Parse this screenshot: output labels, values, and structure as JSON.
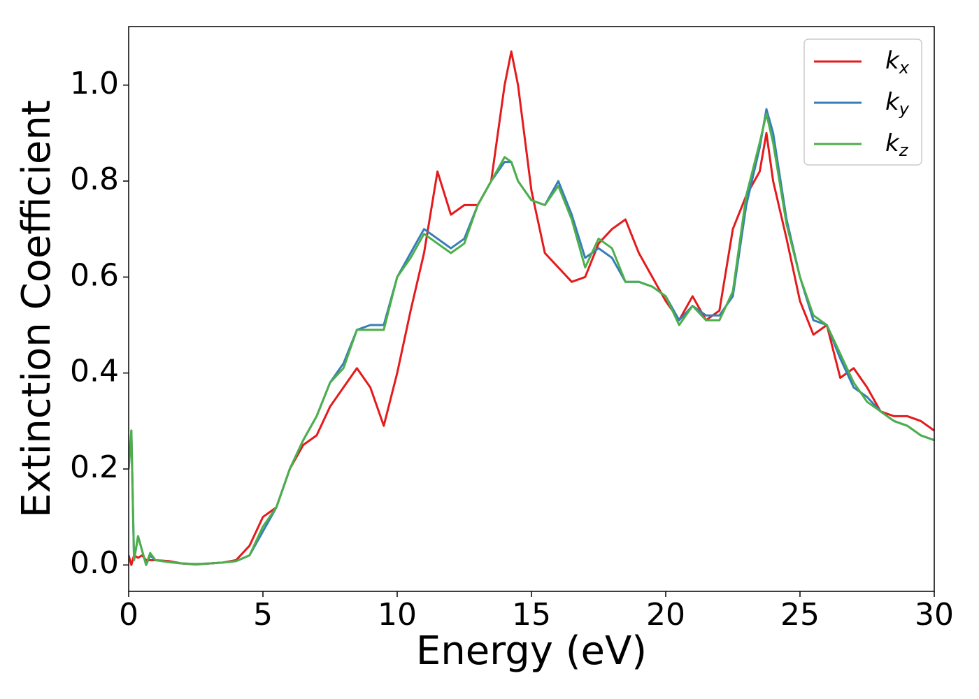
{
  "chart_data": {
    "type": "line",
    "xlabel": "Energy (eV)",
    "ylabel": "Extinction Coefficient",
    "x": [
      0,
      0.1,
      0.2,
      0.35,
      0.5,
      0.65,
      0.8,
      1,
      1.5,
      2,
      2.5,
      3,
      3.5,
      4,
      4.5,
      5,
      5.5,
      6,
      6.5,
      7,
      7.5,
      8,
      8.5,
      9,
      9.5,
      10,
      10.5,
      11,
      11.5,
      12,
      12.5,
      13,
      13.5,
      14,
      14.25,
      14.5,
      15,
      15.5,
      16,
      16.5,
      17,
      17.5,
      18,
      18.5,
      19,
      19.5,
      20,
      20.5,
      21,
      21.5,
      22,
      22.5,
      23,
      23.5,
      23.75,
      24,
      24.5,
      25,
      25.5,
      26,
      26.5,
      27,
      27.5,
      28,
      28.5,
      29,
      29.5,
      30
    ],
    "series": [
      {
        "name": "kx",
        "color": "#e41a1c",
        "values": [
          0.02,
          0.0,
          0.02,
          0.015,
          0.02,
          0.01,
          0.01,
          0.01,
          0.008,
          0.003,
          0.001,
          0.003,
          0.005,
          0.01,
          0.04,
          0.1,
          0.12,
          0.2,
          0.25,
          0.27,
          0.33,
          0.37,
          0.41,
          0.37,
          0.29,
          0.4,
          0.53,
          0.65,
          0.82,
          0.73,
          0.75,
          0.75,
          0.8,
          1.0,
          1.07,
          1.0,
          0.78,
          0.65,
          0.62,
          0.59,
          0.6,
          0.67,
          0.7,
          0.72,
          0.65,
          0.6,
          0.55,
          0.51,
          0.56,
          0.51,
          0.53,
          0.7,
          0.77,
          0.82,
          0.9,
          0.8,
          0.68,
          0.55,
          0.48,
          0.5,
          0.39,
          0.41,
          0.37,
          0.32,
          0.31,
          0.31,
          0.3,
          0.28
        ]
      },
      {
        "name": "ky",
        "color": "#377eb8",
        "values": [
          0.2,
          0.28,
          0.01,
          0.06,
          0.03,
          0.0,
          0.02,
          0.01,
          0.006,
          0.003,
          0.002,
          0.003,
          0.005,
          0.008,
          0.02,
          0.07,
          0.12,
          0.2,
          0.26,
          0.31,
          0.38,
          0.42,
          0.49,
          0.5,
          0.5,
          0.6,
          0.65,
          0.7,
          0.68,
          0.66,
          0.68,
          0.75,
          0.8,
          0.84,
          0.84,
          0.8,
          0.76,
          0.75,
          0.8,
          0.73,
          0.64,
          0.66,
          0.64,
          0.59,
          0.59,
          0.58,
          0.56,
          0.51,
          0.54,
          0.52,
          0.52,
          0.56,
          0.75,
          0.87,
          0.95,
          0.9,
          0.72,
          0.6,
          0.51,
          0.5,
          0.43,
          0.37,
          0.35,
          0.32,
          0.3,
          0.29,
          0.27,
          0.26
        ]
      },
      {
        "name": "kz",
        "color": "#4daf4a",
        "values": [
          0.2,
          0.28,
          0.01,
          0.06,
          0.03,
          0.0,
          0.025,
          0.01,
          0.006,
          0.003,
          0.002,
          0.003,
          0.005,
          0.008,
          0.02,
          0.08,
          0.12,
          0.2,
          0.26,
          0.31,
          0.38,
          0.41,
          0.49,
          0.49,
          0.49,
          0.6,
          0.64,
          0.69,
          0.67,
          0.65,
          0.67,
          0.75,
          0.8,
          0.85,
          0.84,
          0.8,
          0.76,
          0.75,
          0.79,
          0.72,
          0.62,
          0.68,
          0.66,
          0.59,
          0.59,
          0.58,
          0.56,
          0.5,
          0.54,
          0.51,
          0.51,
          0.57,
          0.77,
          0.88,
          0.94,
          0.88,
          0.71,
          0.6,
          0.52,
          0.5,
          0.44,
          0.38,
          0.34,
          0.32,
          0.3,
          0.29,
          0.27,
          0.26
        ]
      }
    ],
    "xlim": [
      0,
      30
    ],
    "xticks": [
      0,
      5,
      10,
      15,
      20,
      25,
      30
    ],
    "ylim": [
      -0.055,
      1.122
    ],
    "yticks": [
      {
        "value": 0,
        "label": "0.0"
      },
      {
        "value": 0.2,
        "label": "0.2"
      },
      {
        "value": 0.4,
        "label": "0.4"
      },
      {
        "value": 0.6,
        "label": "0.6"
      },
      {
        "value": 0.8,
        "label": "0.8"
      },
      {
        "value": 1,
        "label": "1.0"
      }
    ],
    "legend": "upper right",
    "grid": false
  }
}
